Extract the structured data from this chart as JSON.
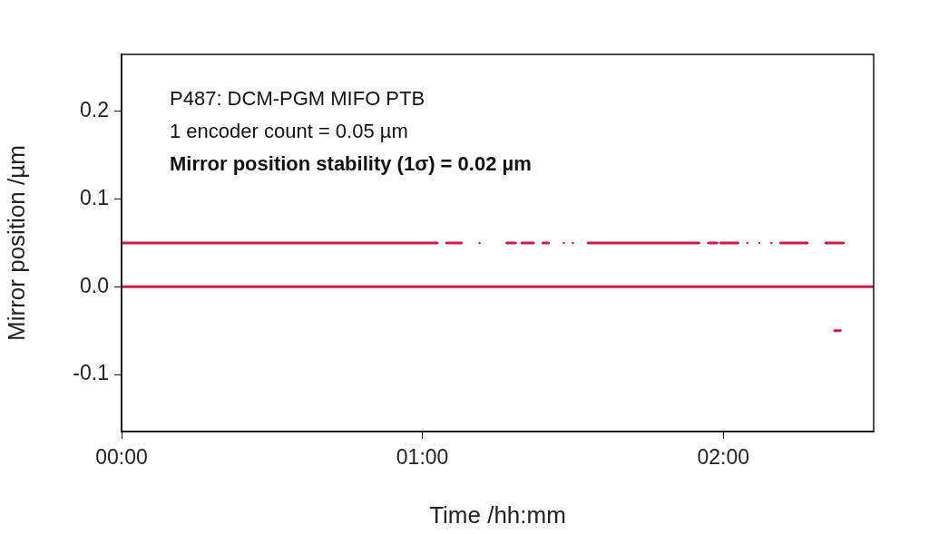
{
  "chart_data": {
    "type": "line",
    "xlabel": "Time /hh:mm",
    "ylabel": "Mirror position /µm",
    "annotations": [
      "P487: DCM-PGM MIFO PTB",
      "1 encoder count = 0.05 µm",
      "Mirror position stability (1σ) = 0.02 µm"
    ],
    "xlim": [
      0,
      2.5
    ],
    "xticks": [
      {
        "value": 0,
        "label": "00:00"
      },
      {
        "value": 1,
        "label": "01:00"
      },
      {
        "value": 2,
        "label": "02:00"
      }
    ],
    "ylim": [
      -0.165,
      0.265
    ],
    "yticks": [
      {
        "value": 0.2,
        "label": "0.2"
      },
      {
        "value": 0.1,
        "label": "0.1"
      },
      {
        "value": 0,
        "label": "0.0"
      },
      {
        "value": -0.1,
        "label": "-0.1"
      }
    ],
    "grid": false,
    "legend": false,
    "marker": "square",
    "line_style": "solid",
    "series": [
      {
        "color": "#d4174a",
        "x": [
          0,
          1.05,
          1.065,
          1.08,
          1.13,
          1.16,
          1.19,
          1.23,
          1.28,
          1.31,
          1.32,
          1.33,
          1.37,
          1.385,
          1.4,
          1.42,
          1.445,
          1.47,
          1.485,
          1.5,
          1.525,
          1.55,
          1.92,
          1.935,
          1.95,
          1.98,
          1.985,
          1.99,
          2.05,
          2.065,
          2.08,
          2.1,
          2.12,
          2.14,
          2.16,
          2.175,
          2.19,
          2.28,
          2.31,
          2.34,
          2.4
        ],
        "values": [
          0.05,
          0.05,
          null,
          0.05,
          0.05,
          null,
          0.05,
          null,
          0.05,
          0.05,
          null,
          0.05,
          0.05,
          null,
          0.05,
          0.05,
          null,
          0.05,
          null,
          0.05,
          null,
          0.05,
          0.05,
          null,
          0.05,
          0.05,
          null,
          0.05,
          0.05,
          null,
          0.05,
          null,
          0.05,
          null,
          0.05,
          null,
          0.05,
          0.05,
          null,
          0.05,
          0.05
        ]
      },
      {
        "color": "#d4174a",
        "x": [
          0,
          2.5
        ],
        "values": [
          0,
          0
        ]
      },
      {
        "color": "#d4174a",
        "x": [
          2.37,
          2.39
        ],
        "values": [
          -0.05,
          -0.05
        ]
      }
    ]
  }
}
